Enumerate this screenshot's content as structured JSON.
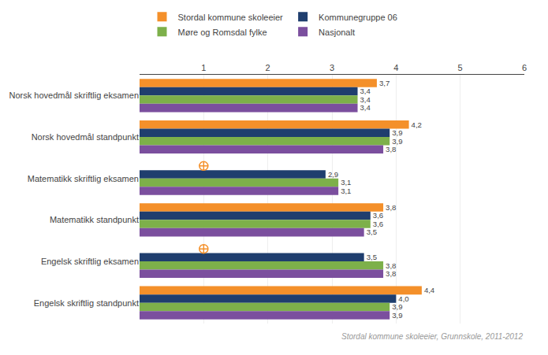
{
  "chart_data": {
    "type": "bar",
    "orientation": "horizontal",
    "subtitle": "Stordal kommune skoleeier, Grunnskole, 2011-2012",
    "categories": [
      "Norsk hovedmål skriftlig eksamen",
      "Norsk hovedmål standpunkt",
      "Matematikk skriftlig eksamen",
      "Matematikk standpunkt",
      "Engelsk skriftlig eksamen",
      "Engelsk skriftlig standpunkt"
    ],
    "series": [
      {
        "name": "Stordal kommune skoleeier",
        "color": "#F4902A",
        "values": [
          3.7,
          4.2,
          null,
          3.8,
          null,
          4.4
        ],
        "value_labels": [
          "3,7",
          "4,2",
          null,
          "3,8",
          null,
          "4,4"
        ]
      },
      {
        "name": "Kommunegruppe 06",
        "color": "#1F3E6E",
        "values": [
          3.4,
          3.9,
          2.9,
          3.6,
          3.5,
          4.0
        ],
        "value_labels": [
          "3,4",
          "3,9",
          "2,9",
          "3,6",
          "3,5",
          "4,0"
        ]
      },
      {
        "name": "Møre og Romsdal fylke",
        "color": "#7DB04A",
        "values": [
          3.4,
          3.9,
          3.1,
          3.6,
          3.8,
          3.9
        ],
        "value_labels": [
          "3,4",
          "3,9",
          "3,1",
          "3,6",
          "3,8",
          "3,9"
        ]
      },
      {
        "name": "Nasjonalt",
        "color": "#7B4F9E",
        "values": [
          3.4,
          3.8,
          3.1,
          3.5,
          3.8,
          3.9
        ],
        "value_labels": [
          "3,4",
          "3,8",
          "3,1",
          "3,5",
          "3,8",
          "3,9"
        ]
      }
    ],
    "xlim": [
      0,
      6
    ],
    "xticks": [
      1,
      2,
      3,
      4,
      5,
      6
    ],
    "grid": true,
    "data_labels": true,
    "legend": "top"
  }
}
